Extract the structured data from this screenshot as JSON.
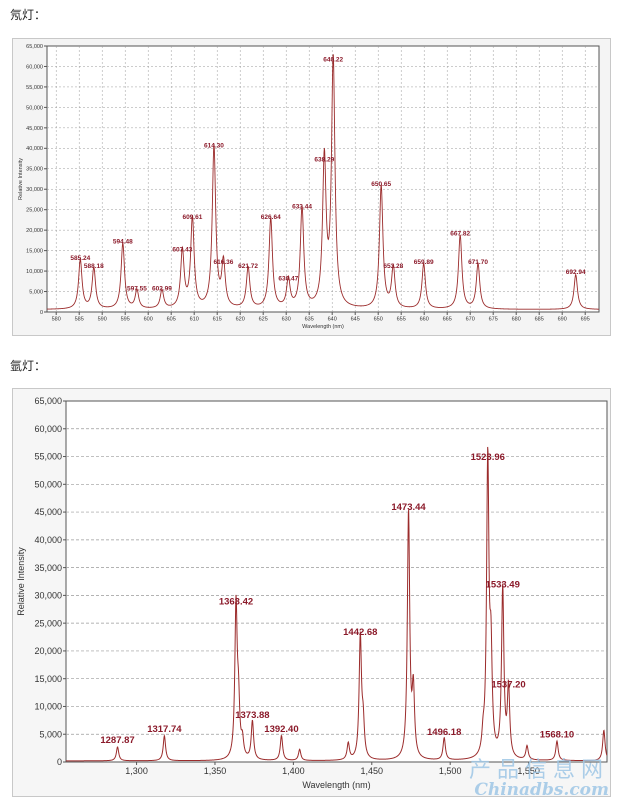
{
  "headings": {
    "neon": "氖灯：",
    "argon": "氩灯："
  },
  "colors": {
    "line": "#9b2b2b",
    "peak_label": "#8b1a2a",
    "grid": "#9a9a9a",
    "watermark": "#9ec7e6"
  },
  "watermark": {
    "cn": "产品信息网",
    "en": "Chinadbs.com"
  },
  "chart_data": [
    {
      "type": "line",
      "name": "neon",
      "xlabel": "Wavelength (nm)",
      "ylabel": "Relative Intensity",
      "xlim": [
        578,
        698
      ],
      "ylim": [
        0,
        65000
      ],
      "xticks": [
        580,
        585,
        590,
        595,
        600,
        605,
        610,
        615,
        620,
        625,
        630,
        635,
        640,
        645,
        650,
        655,
        660,
        665,
        670,
        675,
        680,
        685,
        690,
        695
      ],
      "yticks": [
        0,
        5000,
        10000,
        15000,
        20000,
        25000,
        30000,
        35000,
        40000,
        45000,
        50000,
        55000,
        60000,
        65000
      ],
      "ytick_labels": [
        "0",
        "5,000",
        "10,000",
        "15,000",
        "20,000",
        "25,000",
        "30,000",
        "35,000",
        "40,000",
        "45,000",
        "50,000",
        "55,000",
        "60,000",
        "65,000"
      ],
      "baseline": 600,
      "peak_width": 0.45,
      "peaks": [
        {
          "x": 585.24,
          "y": 12000,
          "label": "585.24"
        },
        {
          "x": 588.18,
          "y": 10000,
          "label": "588.18"
        },
        {
          "x": 594.48,
          "y": 16000,
          "label": "594.48"
        },
        {
          "x": 597.55,
          "y": 4500,
          "label": "597.55"
        },
        {
          "x": 602.99,
          "y": 4500,
          "label": "602.99"
        },
        {
          "x": 607.43,
          "y": 14000,
          "label": "607.43"
        },
        {
          "x": 609.61,
          "y": 22000,
          "label": "609.61"
        },
        {
          "x": 614.3,
          "y": 39500,
          "label": "614.30"
        },
        {
          "x": 616.36,
          "y": 11000,
          "label": "616.36"
        },
        {
          "x": 621.72,
          "y": 10000,
          "label": "621.72"
        },
        {
          "x": 626.64,
          "y": 22000,
          "label": "626.64"
        },
        {
          "x": 630.47,
          "y": 7000,
          "label": "630.47"
        },
        {
          "x": 633.44,
          "y": 24500,
          "label": "633.44"
        },
        {
          "x": 638.29,
          "y": 36000,
          "label": "638.29"
        },
        {
          "x": 640.22,
          "y": 60500,
          "label": "640.22"
        },
        {
          "x": 650.65,
          "y": 30000,
          "label": "650.65"
        },
        {
          "x": 653.28,
          "y": 10000,
          "label": "653.28"
        },
        {
          "x": 659.89,
          "y": 11000,
          "label": "659.89"
        },
        {
          "x": 667.82,
          "y": 18000,
          "label": "667.82"
        },
        {
          "x": 671.7,
          "y": 11000,
          "label": "671.70"
        },
        {
          "x": 692.94,
          "y": 8500,
          "label": "692.94"
        }
      ]
    },
    {
      "type": "line",
      "name": "argon",
      "xlabel": "Wavelength (nm)",
      "ylabel": "Relative Intensity",
      "xlim": [
        1255,
        1600
      ],
      "ylim": [
        0,
        65000
      ],
      "xticks": [
        1300,
        1350,
        1400,
        1450,
        1500,
        1550
      ],
      "xtick_labels": [
        "1,300",
        "1,350",
        "1,400",
        "1,450",
        "1,500",
        "1,550"
      ],
      "yticks": [
        0,
        5000,
        10000,
        15000,
        20000,
        25000,
        30000,
        35000,
        40000,
        45000,
        50000,
        55000,
        60000,
        65000
      ],
      "ytick_labels": [
        "0",
        "5,000",
        "10,000",
        "15,000",
        "20,000",
        "25,000",
        "30,000",
        "35,000",
        "40,000",
        "45,000",
        "50,000",
        "55,000",
        "60,000",
        "65,000"
      ],
      "baseline": 200,
      "peak_width": 0.9,
      "peaks": [
        {
          "x": 1287.87,
          "y": 2500,
          "label": "1287.87"
        },
        {
          "x": 1317.74,
          "y": 4500,
          "label": "1317.74"
        },
        {
          "x": 1363.42,
          "y": 27500,
          "label": "1363.42"
        },
        {
          "x": 1365.0,
          "y": 9000
        },
        {
          "x": 1367.5,
          "y": 3000
        },
        {
          "x": 1373.88,
          "y": 7000,
          "label": "1373.88"
        },
        {
          "x": 1392.4,
          "y": 4500,
          "label": "1392.40"
        },
        {
          "x": 1404.0,
          "y": 2000
        },
        {
          "x": 1435.0,
          "y": 3000
        },
        {
          "x": 1442.68,
          "y": 22000,
          "label": "1442.68"
        },
        {
          "x": 1444.5,
          "y": 6000
        },
        {
          "x": 1473.44,
          "y": 44500,
          "label": "1473.44"
        },
        {
          "x": 1476.5,
          "y": 12000
        },
        {
          "x": 1496.18,
          "y": 4000,
          "label": "1496.18"
        },
        {
          "x": 1521.0,
          "y": 3000
        },
        {
          "x": 1523.96,
          "y": 53500,
          "label": "1523.96"
        },
        {
          "x": 1526.0,
          "y": 17000
        },
        {
          "x": 1533.49,
          "y": 30500,
          "label": "1533.49"
        },
        {
          "x": 1537.2,
          "y": 12500,
          "label": "1537.20"
        },
        {
          "x": 1549.0,
          "y": 2500
        },
        {
          "x": 1568.1,
          "y": 3500,
          "label": "1568.10"
        },
        {
          "x": 1598.0,
          "y": 5500
        }
      ]
    }
  ]
}
